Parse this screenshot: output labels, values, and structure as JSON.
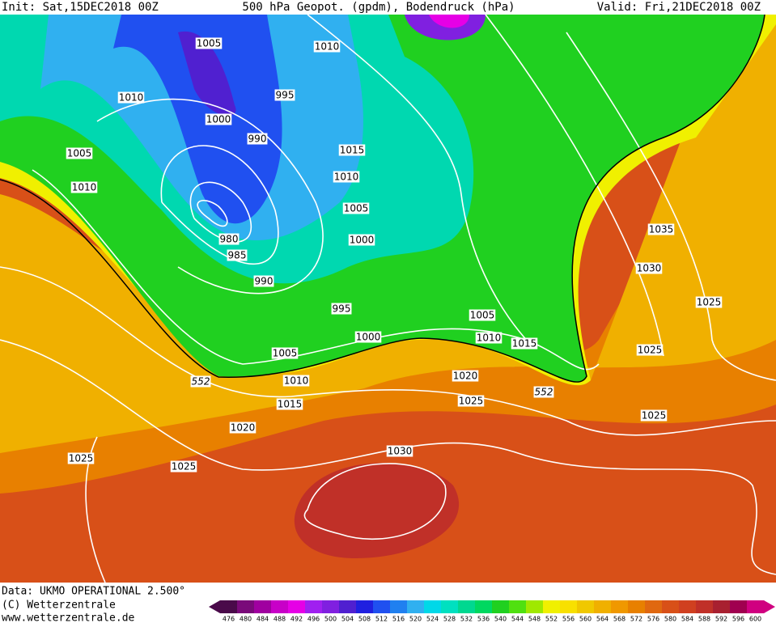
{
  "header": {
    "init": "Init: Sat,15DEC2018 00Z",
    "title": "500 hPa Geopot. (gpdm), Bodendruck (hPa)",
    "valid": "Valid: Fri,21DEC2018 00Z"
  },
  "isobar_labels": [
    "1005",
    "1010",
    "1010",
    "995",
    "1000",
    "990",
    "1015",
    "1005",
    "1010",
    "1010",
    "1005",
    "980",
    "985",
    "1000",
    "990",
    "995",
    "1005",
    "1000",
    "1010",
    "1005",
    "1015",
    "1010",
    "1020",
    "1015",
    "1025",
    "1020",
    "1030",
    "1025",
    "1025",
    "1035",
    "1030",
    "1025",
    "1025",
    "1025"
  ],
  "contour_labels": [
    "552",
    "552"
  ],
  "legend": {
    "ticks": [
      "476",
      "480",
      "484",
      "488",
      "492",
      "496",
      "500",
      "504",
      "508",
      "512",
      "516",
      "520",
      "524",
      "528",
      "532",
      "536",
      "540",
      "544",
      "548",
      "552",
      "556",
      "560",
      "564",
      "568",
      "572",
      "576",
      "580",
      "584",
      "588",
      "592",
      "596",
      "600"
    ],
    "colors": [
      "#4a0a4a",
      "#7a0a7a",
      "#a000a0",
      "#c800c8",
      "#e600e6",
      "#a020f0",
      "#8020e0",
      "#5020d0",
      "#2020e0",
      "#2050f0",
      "#2080f0",
      "#30b0f0",
      "#00d8e8",
      "#00e0c0",
      "#00d890",
      "#00d860",
      "#20d020",
      "#50e010",
      "#a0e800",
      "#f0f000",
      "#f8e000",
      "#f0c800",
      "#f0b000",
      "#f09800",
      "#e88000",
      "#e06810",
      "#d85018",
      "#d04020",
      "#c03028",
      "#a82030",
      "#a00050",
      "#d00080"
    ]
  },
  "footer": {
    "data": "Data: UKMO OPERATIONAL 2.500°",
    "copyright": "(C) Wetterzentrale",
    "url": "www.wetterzentrale.de"
  }
}
